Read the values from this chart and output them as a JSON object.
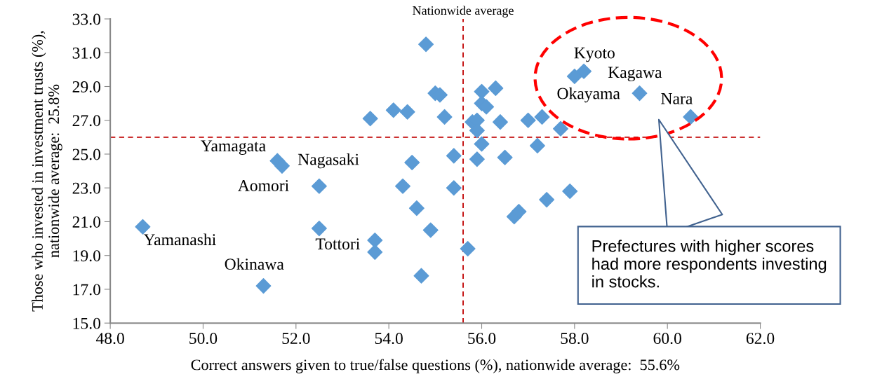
{
  "chart_data": {
    "type": "scatter",
    "xlabel": "Correct answers given to true/false questions (%), nationwide average:  55.6%",
    "ylabel": "Those who invested in investment trusts (%),\nnationwide average:  25.8%",
    "x": [
      48.7,
      51.3,
      51.6,
      51.7,
      52.5,
      52.5,
      53.6,
      54.1,
      54.4,
      54.8,
      55.0,
      55.1,
      55.2,
      54.5,
      54.3,
      54.6,
      54.9,
      53.7,
      53.7,
      54.7,
      55.4,
      55.4,
      55.7,
      55.8,
      55.9,
      55.9,
      55.9,
      56.0,
      56.0,
      56.1,
      56.3,
      56.0,
      56.4,
      56.5,
      57.0,
      57.3,
      57.7,
      57.2,
      56.7,
      56.8,
      57.4,
      57.9,
      58.0,
      58.2,
      59.4,
      60.5
    ],
    "series": [
      {
        "color": "#5b9bd5",
        "values": [
          20.7,
          17.2,
          24.6,
          24.3,
          23.1,
          20.6,
          27.1,
          27.6,
          27.5,
          31.5,
          28.6,
          28.5,
          27.2,
          24.5,
          23.1,
          21.8,
          20.5,
          19.9,
          19.2,
          17.8,
          24.9,
          23.0,
          19.4,
          26.9,
          27.0,
          26.4,
          24.7,
          28.7,
          28.0,
          27.8,
          28.9,
          25.6,
          26.9,
          24.8,
          27.0,
          27.2,
          26.5,
          25.5,
          21.3,
          21.6,
          22.3,
          22.8,
          29.6,
          29.9,
          28.6,
          27.2
        ]
      }
    ],
    "marker": "diamond",
    "xlim": [
      48.0,
      62.0
    ],
    "xticks": [
      {
        "value": 48,
        "label": "48.0"
      },
      {
        "value": 50,
        "label": "50.0"
      },
      {
        "value": 52,
        "label": "52.0"
      },
      {
        "value": 54,
        "label": "54.0"
      },
      {
        "value": 56,
        "label": "56.0"
      },
      {
        "value": 58,
        "label": "58.0"
      },
      {
        "value": 60,
        "label": "60.0"
      },
      {
        "value": 62,
        "label": "62.0"
      }
    ],
    "ylim": [
      15.0,
      33.0
    ],
    "yticks": [
      {
        "value": 15,
        "label": "15.0"
      },
      {
        "value": 17,
        "label": "17.0"
      },
      {
        "value": 19,
        "label": "19.0"
      },
      {
        "value": 21,
        "label": "21.0"
      },
      {
        "value": 23,
        "label": "23.0"
      },
      {
        "value": 25,
        "label": "25.0"
      },
      {
        "value": 27,
        "label": "27.0"
      },
      {
        "value": 29,
        "label": "29.0"
      },
      {
        "value": 31,
        "label": "31.0"
      },
      {
        "value": 33,
        "label": "33.0"
      }
    ],
    "ref_lines": [
      {
        "axis": "x",
        "value": 55.6,
        "label": "Nationwide average",
        "color": "#c00000",
        "line_style": "dashed"
      },
      {
        "axis": "y",
        "value": 26.0,
        "color": "#c00000",
        "line_style": "dashed"
      }
    ],
    "annotations": [
      {
        "text": "Yamagata",
        "x": 51.6,
        "y": 24.6
      },
      {
        "text": "Nagasaki",
        "x": 51.7,
        "y": 24.3
      },
      {
        "text": "Aomori",
        "x": 52.5,
        "y": 23.1
      },
      {
        "text": "Yamanashi",
        "x": 48.7,
        "y": 20.7
      },
      {
        "text": "Tottori",
        "x": 53.7,
        "y": 19.2
      },
      {
        "text": "Okinawa",
        "x": 51.3,
        "y": 17.2
      },
      {
        "text": "Kyoto",
        "x": 58.0,
        "y": 29.6
      },
      {
        "text": "Kagawa",
        "x": 58.2,
        "y": 29.9
      },
      {
        "text": "Okayama",
        "x": 59.4,
        "y": 28.6
      },
      {
        "text": "Nara",
        "x": 60.5,
        "y": 27.2
      },
      "Prefectures with higher scores\nhad more respondents investing\nin stocks."
    ],
    "grid": false,
    "legend": false
  }
}
